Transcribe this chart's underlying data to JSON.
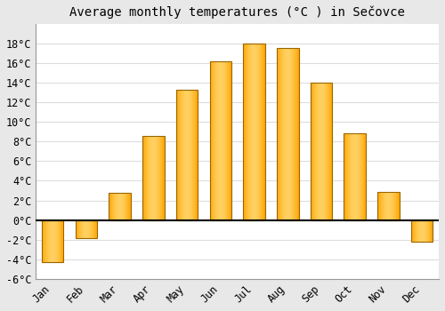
{
  "title": "Average monthly temperatures (°C ) in Sečovce",
  "months": [
    "Jan",
    "Feb",
    "Mar",
    "Apr",
    "May",
    "Jun",
    "Jul",
    "Aug",
    "Sep",
    "Oct",
    "Nov",
    "Dec"
  ],
  "values": [
    -4.3,
    -1.8,
    2.8,
    8.6,
    13.3,
    16.2,
    18.0,
    17.5,
    14.0,
    8.8,
    2.9,
    -2.2
  ],
  "bar_color": "#FFA500",
  "bar_color_light": "#FFD060",
  "bar_edge_color": "#996600",
  "ylim": [
    -6,
    20
  ],
  "yticks": [
    -6,
    -4,
    -2,
    0,
    2,
    4,
    6,
    8,
    10,
    12,
    14,
    16,
    18
  ],
  "ytick_labels": [
    "-6°C",
    "-4°C",
    "-2°C",
    "0°C",
    "2°C",
    "4°C",
    "6°C",
    "8°C",
    "10°C",
    "12°C",
    "14°C",
    "16°C",
    "18°C"
  ],
  "plot_bg_color": "#ffffff",
  "fig_bg_color": "#e8e8e8",
  "grid_color": "#dddddd",
  "title_fontsize": 10,
  "tick_fontsize": 8.5,
  "bar_width": 0.65
}
